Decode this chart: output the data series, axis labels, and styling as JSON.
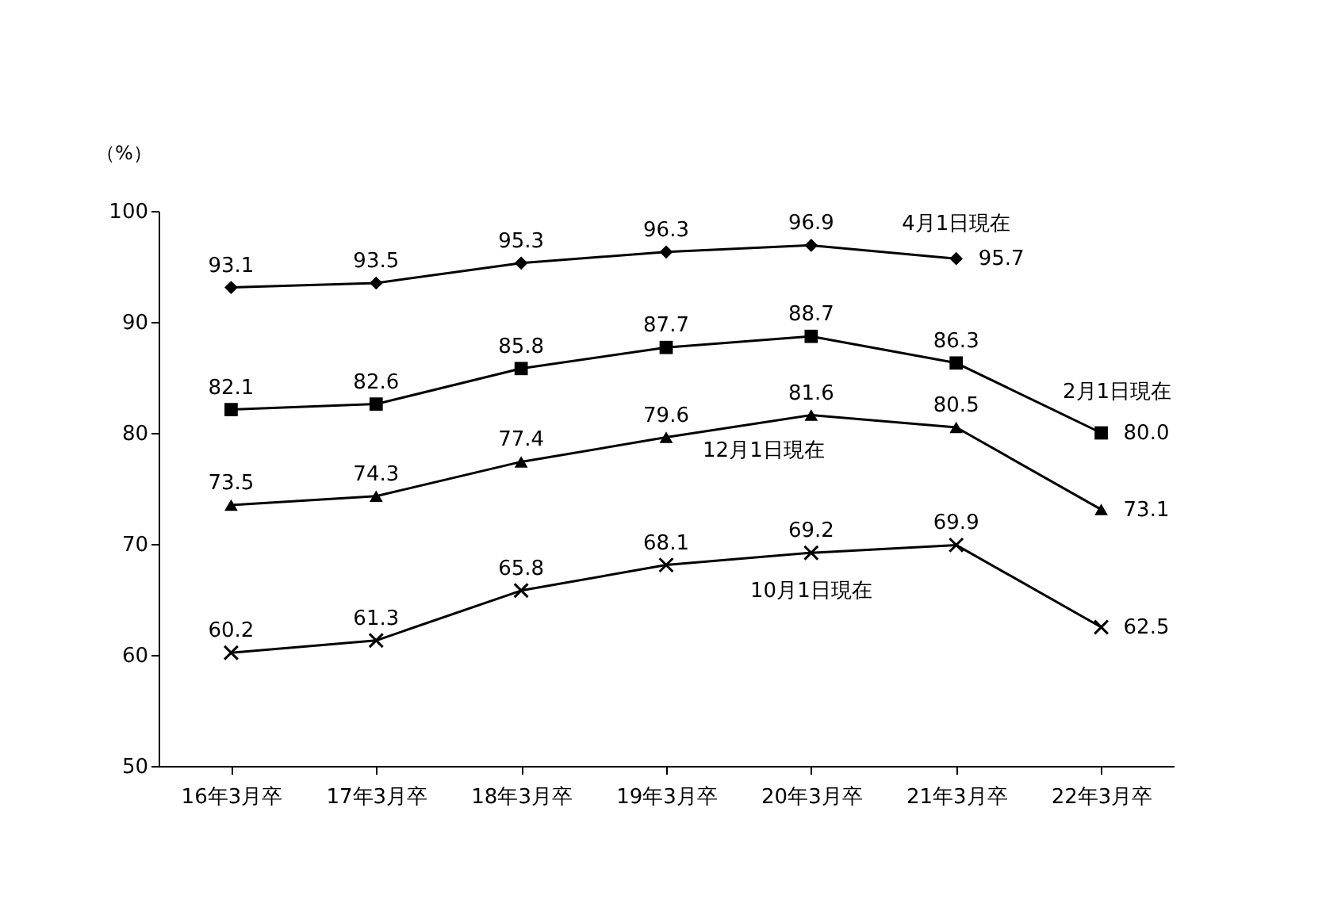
{
  "chart_data": {
    "type": "line",
    "ylabel": "（%）",
    "categories": [
      "16年3月卒",
      "17年3月卒",
      "18年3月卒",
      "19年3月卒",
      "20年3月卒",
      "21年3月卒",
      "22年3月卒"
    ],
    "series": [
      {
        "name": "4月1日現在",
        "color": "#000000",
        "marker": "diamond",
        "values": [
          93.1,
          93.5,
          95.3,
          96.3,
          96.9,
          95.7,
          null
        ],
        "value_labels": [
          "93.1",
          "93.5",
          "95.3",
          "96.3",
          "96.9",
          "95.7",
          null
        ]
      },
      {
        "name": "2月1日現在",
        "color": "#000000",
        "marker": "square",
        "values": [
          82.1,
          82.6,
          85.8,
          87.7,
          88.7,
          86.3,
          80.0
        ],
        "value_labels": [
          "82.1",
          "82.6",
          "85.8",
          "87.7",
          "88.7",
          "86.3",
          "80.0"
        ]
      },
      {
        "name": "12月1日現在",
        "color": "#000000",
        "marker": "triangle",
        "values": [
          73.5,
          74.3,
          77.4,
          79.6,
          81.6,
          80.5,
          73.1
        ],
        "value_labels": [
          "73.5",
          "74.3",
          "77.4",
          "79.6",
          "81.6",
          "80.5",
          "73.1"
        ]
      },
      {
        "name": "10月1日現在",
        "color": "#000000",
        "marker": "cross",
        "values": [
          60.2,
          61.3,
          65.8,
          68.1,
          69.2,
          69.9,
          62.5
        ],
        "value_labels": [
          "60.2",
          "61.3",
          "65.8",
          "68.1",
          "69.2",
          "69.9",
          "62.5"
        ]
      }
    ],
    "ylim": [
      50,
      100
    ],
    "yticks": [
      50,
      60,
      70,
      80,
      90,
      100
    ],
    "line_style": "solid"
  }
}
